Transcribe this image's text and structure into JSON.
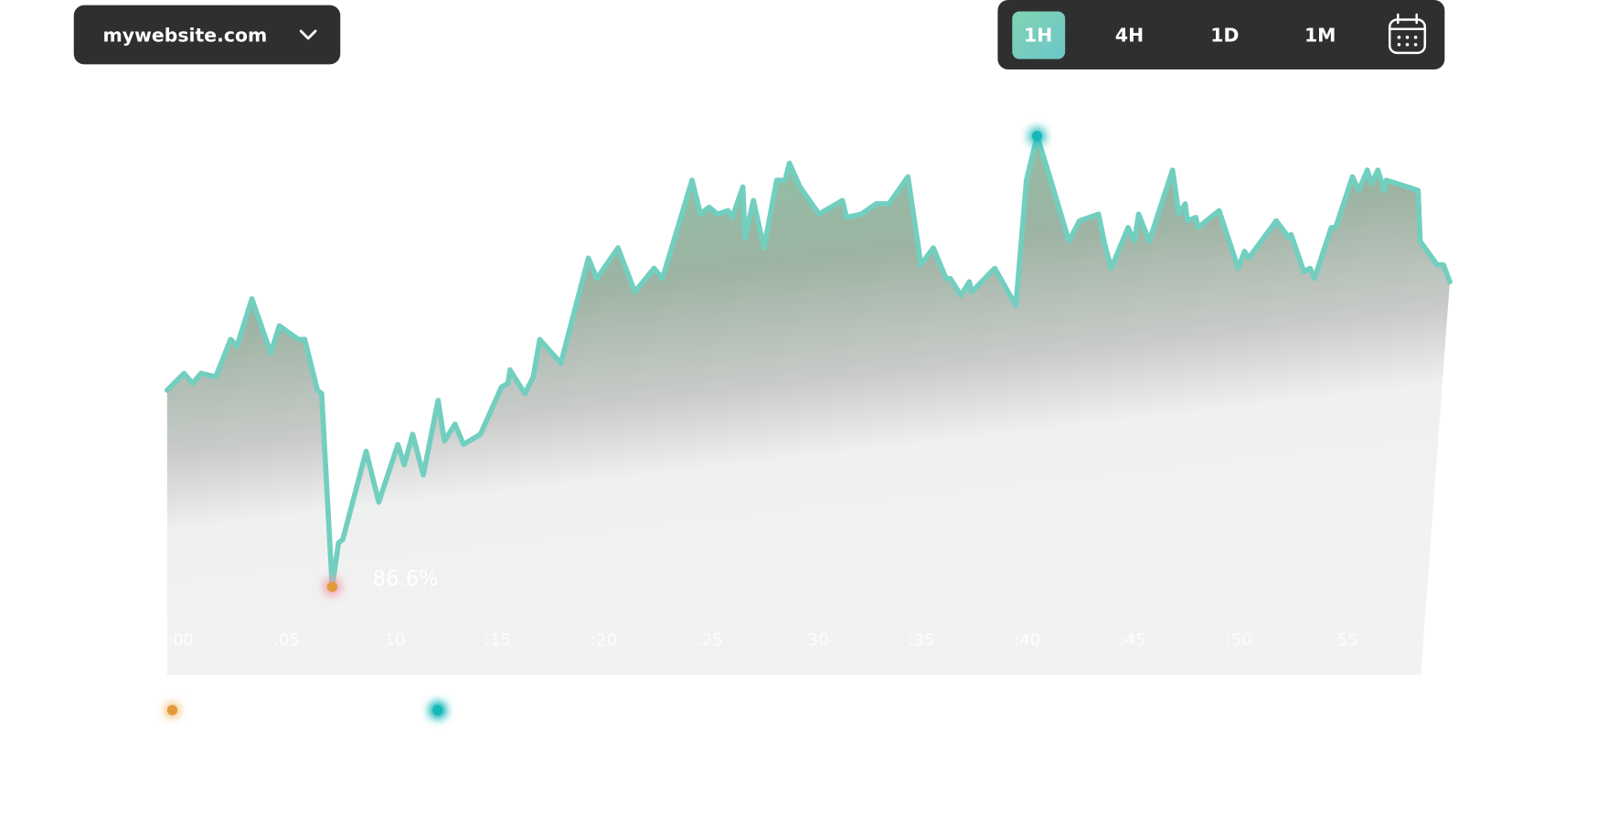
{
  "controls": {
    "site_selector": "mywebsite.com",
    "ranges": [
      "1H",
      "4H",
      "1D",
      "1M"
    ],
    "active_range": "1H"
  },
  "chart_data": {
    "type": "area",
    "x": [
      0.0,
      0.8,
      1.2,
      1.6,
      2.3,
      3.0,
      3.3,
      4.0,
      4.9,
      5.3,
      6.2,
      6.5,
      7.1,
      7.3,
      7.8,
      8.1,
      8.3,
      9.4,
      10.0,
      10.9,
      11.2,
      11.6,
      12.1,
      12.8,
      13.1,
      13.6,
      14.0,
      14.8,
      15.8,
      16.1,
      16.2,
      16.9,
      17.3,
      17.6,
      18.6,
      19.9,
      20.3,
      21.3,
      22.1,
      23.0,
      23.4,
      24.8,
      25.2,
      25.6,
      26.0,
      26.5,
      26.7,
      27.2,
      27.3,
      27.7,
      28.2,
      28.8,
      29.2,
      29.4,
      29.9,
      30.8,
      31.9,
      32.1,
      32.8,
      33.5,
      34.1,
      35.0,
      35.5,
      35.6,
      36.2,
      36.8,
      37.0,
      37.5,
      37.9,
      38.0,
      39.1,
      40.1,
      40.6,
      41.1,
      41.7,
      42.6,
      43.1,
      44.0,
      44.3,
      44.6,
      45.4,
      45.7,
      45.9,
      46.4,
      47.5,
      47.8,
      48.1,
      48.2,
      48.6,
      48.7,
      49.7,
      50.6,
      50.9,
      51.1,
      52.4,
      53.0,
      53.1,
      53.7,
      54.0,
      54.2,
      55.0,
      55.2,
      56.0,
      56.3,
      56.7,
      56.9,
      57.2,
      57.5,
      57.6,
      59.1,
      59.2,
      60.0,
      60.3,
      60.6
    ],
    "values": [
      92.4,
      92.9,
      92.6,
      92.9,
      92.8,
      93.9,
      93.7,
      95.1,
      93.5,
      94.3,
      93.9,
      93.9,
      92.4,
      92.3,
      86.6,
      87.9,
      88.0,
      90.6,
      89.1,
      90.8,
      90.2,
      91.1,
      89.9,
      92.1,
      90.9,
      91.4,
      90.8,
      91.1,
      92.5,
      92.6,
      93.0,
      92.3,
      92.8,
      93.9,
      93.2,
      96.3,
      95.7,
      96.6,
      95.3,
      96.0,
      95.7,
      98.6,
      97.6,
      97.8,
      97.6,
      97.7,
      97.5,
      98.4,
      96.9,
      98.0,
      96.6,
      98.6,
      98.6,
      99.1,
      98.4,
      97.6,
      98.0,
      97.5,
      97.6,
      97.9,
      97.9,
      98.7,
      96.6,
      96.1,
      96.6,
      95.7,
      95.7,
      95.2,
      95.6,
      95.3,
      96.0,
      94.9,
      98.6,
      99.9,
      98.7,
      96.8,
      97.4,
      97.6,
      96.7,
      96.0,
      97.2,
      96.8,
      97.6,
      96.8,
      98.9,
      97.6,
      97.9,
      97.4,
      97.5,
      97.2,
      97.7,
      96.0,
      96.5,
      96.3,
      97.4,
      96.9,
      97.0,
      95.9,
      96.0,
      95.7,
      97.2,
      97.2,
      98.7,
      98.3,
      98.9,
      98.5,
      98.9,
      98.3,
      98.6,
      98.3,
      96.8,
      96.1,
      96.1,
      95.6
    ],
    "value_labels": [
      null,
      null,
      null,
      null,
      null,
      null,
      null,
      null,
      null,
      null,
      null,
      null,
      null,
      null,
      "86.6%",
      null,
      null,
      null,
      null,
      null,
      null,
      null,
      null,
      null,
      null,
      null,
      null,
      null,
      null,
      null,
      null,
      null,
      null,
      null,
      null,
      null,
      null,
      null,
      null,
      null,
      null,
      null,
      null,
      null,
      null,
      null,
      null,
      null,
      null,
      null,
      null,
      null,
      null,
      null,
      null,
      null,
      null,
      null,
      null,
      null,
      null,
      null,
      null,
      null,
      null,
      null,
      null,
      null,
      null,
      null,
      null,
      null,
      null,
      null,
      null,
      null,
      null,
      null,
      null,
      null,
      null,
      null,
      null,
      null,
      null,
      null,
      null,
      null,
      null,
      null,
      null,
      null,
      null,
      null,
      null,
      null,
      null,
      null,
      null,
      null,
      null,
      null,
      null,
      null,
      null,
      null,
      null,
      null,
      null,
      null,
      null,
      null,
      null,
      null
    ],
    "color": "#72cfc0",
    "min_color": "#e39a3b",
    "max_color": "#14b8b8",
    "xlim": [
      0,
      60.6
    ],
    "ylim": [
      84,
      100
    ],
    "xticks": [
      {
        "value": 0,
        "label": ":00"
      },
      {
        "value": 5,
        "label": ":05"
      },
      {
        "value": 10,
        "label": ":10"
      },
      {
        "value": 15,
        "label": ":15"
      },
      {
        "value": 20,
        "label": ":20"
      },
      {
        "value": 25,
        "label": ":25"
      },
      {
        "value": 30,
        "label": ":30"
      },
      {
        "value": 35,
        "label": ":35"
      },
      {
        "value": 40,
        "label": ":40"
      },
      {
        "value": 45,
        "label": ":45"
      },
      {
        "value": 50,
        "label": ":50"
      },
      {
        "value": 55,
        "label": ":55"
      }
    ]
  }
}
